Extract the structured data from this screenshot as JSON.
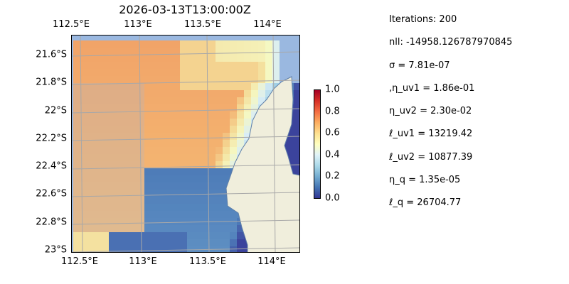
{
  "chart_data": {
    "type": "heatmap",
    "title": "2026-03-13T13:00:00Z",
    "x_tick_labels": [
      "112.5°E",
      "113°E",
      "113.5°E",
      "114°E"
    ],
    "x_ticks": [
      112.5,
      113,
      113.5,
      114
    ],
    "y_tick_labels": [
      "21.6°S",
      "21.8°S",
      "22°S",
      "22.2°S",
      "22.4°S",
      "22.6°S",
      "22.8°S",
      "23°S"
    ],
    "y_ticks": [
      21.6,
      21.8,
      22.0,
      22.2,
      22.4,
      22.6,
      22.8,
      23.0
    ],
    "colorbar": {
      "ticks": [
        "0.0",
        "0.2",
        "0.4",
        "0.6",
        "0.8",
        "1.0"
      ],
      "range": [
        0,
        1
      ],
      "colormap": "RdYlBu_r"
    },
    "colors": {
      "ocean": "#9ab8e0",
      "land": "#f0eedc",
      "grid": "#a8a8a8"
    }
  },
  "stats": [
    "Iterations: 200",
    "nll: -14958.126787970845",
    "σ = 7.81e-07",
    ",η_uv1 = 1.86e-01",
    "η_uv2 = 2.30e-02",
    "ℓ_uv1 = 13219.42",
    "ℓ_uv2 = 10877.39",
    "η_q = 1.35e-05",
    "ℓ_q = 26704.77"
  ]
}
